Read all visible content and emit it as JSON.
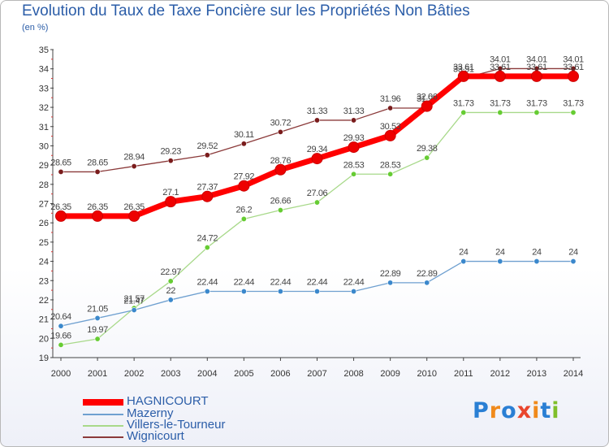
{
  "header": {
    "title": "Evolution du Taux de Taxe Foncière sur les Propriétés Non Bâties",
    "unit": "(en %)"
  },
  "logo": {
    "letters": [
      "P",
      "r",
      "o",
      "x",
      "i",
      "t",
      "i"
    ],
    "colors": [
      "#2a7fd4",
      "#f08a1c",
      "#2a7fd4",
      "#e9452d",
      "#f08a1c",
      "#2a7fd4",
      "#7fbf2a"
    ]
  },
  "chart_data": {
    "type": "line",
    "title": "Evolution du Taux de Taxe Foncière sur les Propriétés Non Bâties",
    "ylabel": "(en %)",
    "x": [
      2000,
      2001,
      2002,
      2003,
      2004,
      2005,
      2006,
      2007,
      2008,
      2009,
      2010,
      2011,
      2012,
      2013,
      2014
    ],
    "ylim": [
      19,
      35
    ],
    "yticks": [
      19,
      20,
      21,
      22,
      23,
      24,
      25,
      26,
      27,
      28,
      29,
      30,
      31,
      32,
      33,
      34,
      35
    ],
    "grid": false,
    "legend": "bottom-left",
    "series": [
      {
        "name": "Wignicourt",
        "color": "#8b3a3a",
        "marker": "#7a1c1c",
        "values": [
          28.65,
          28.65,
          28.94,
          29.23,
          29.52,
          30.11,
          30.72,
          31.33,
          31.33,
          31.96,
          31.96,
          33.51,
          34.01,
          34.01,
          34.01
        ],
        "labels": [
          "28.65",
          "28.65",
          "28.94",
          "29.23",
          "29.52",
          "30.11",
          "30.72",
          "31.33",
          "31.33",
          "31.96",
          "31.96",
          "33.51",
          "34.01",
          "34.01",
          "34.01"
        ]
      },
      {
        "name": "Villers-le-Tourneur",
        "color": "#a8d98a",
        "marker": "#66cc33",
        "values": [
          19.66,
          19.97,
          21.57,
          22.97,
          24.72,
          26.2,
          26.66,
          27.06,
          28.53,
          28.53,
          29.38,
          31.73,
          31.73,
          31.73,
          31.73
        ],
        "labels": [
          "19.66",
          "19.97",
          "21.57",
          "22.97",
          "24.72",
          "26.2",
          "26.66",
          "27.06",
          "28.53",
          "28.53",
          "29.38",
          "31.73",
          "31.73",
          "31.73",
          "31.73"
        ]
      },
      {
        "name": "Mazerny",
        "color": "#6fa0d0",
        "marker": "#3b88cc",
        "values": [
          20.64,
          21.05,
          21.47,
          22,
          22.44,
          22.44,
          22.44,
          22.44,
          22.44,
          22.89,
          22.89,
          24,
          24,
          24,
          24
        ],
        "labels": [
          "20.64",
          "21.05",
          "21.47",
          "22",
          "22.44",
          "22.44",
          "22.44",
          "22.44",
          "22.44",
          "22.89",
          "22.89",
          "24",
          "24",
          "24",
          "24"
        ]
      },
      {
        "name": "HAGNICOURT",
        "color": "#ff0000",
        "marker": "#ee0000",
        "values": [
          26.35,
          26.35,
          26.35,
          27.1,
          27.37,
          27.92,
          28.76,
          29.34,
          29.93,
          30.53,
          32.06,
          33.61,
          33.61,
          33.61,
          33.61
        ],
        "labels": [
          "26.35",
          "26.35",
          "26.35",
          "27.1",
          "27.37",
          "27.92",
          "28.76",
          "29.34",
          "29.93",
          "30.53",
          "32.06",
          "33.61",
          "33.61",
          "33.61",
          "33.61"
        ]
      }
    ],
    "legend_order": [
      "HAGNICOURT",
      "Mazerny",
      "Villers-le-Tourneur",
      "Wignicourt"
    ]
  }
}
